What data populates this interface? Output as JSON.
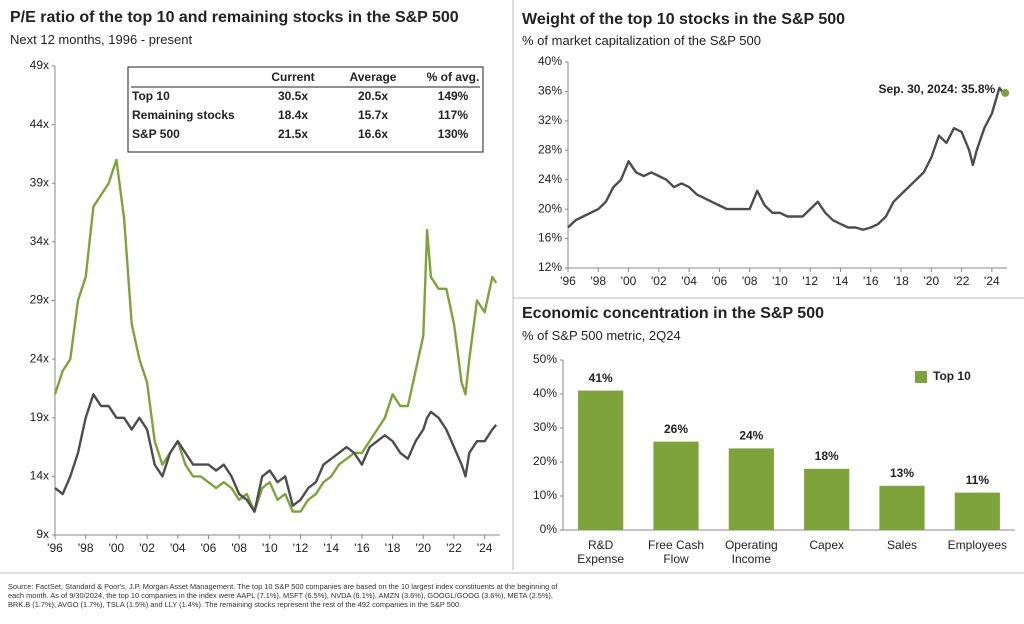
{
  "chart_data": [
    {
      "type": "line",
      "title": "P/E ratio of the top 10 and remaining stocks in the S&P 500",
      "subtitle": "Next 12 months, 1996 - present",
      "x": [
        1996,
        1996.5,
        1997,
        1997.5,
        1998,
        1998.5,
        1999,
        1999.5,
        2000,
        2000.5,
        2001,
        2001.5,
        2002,
        2002.5,
        2003,
        2003.5,
        2004,
        2004.5,
        2005,
        2005.5,
        2006,
        2006.5,
        2007,
        2007.5,
        2008,
        2008.5,
        2009,
        2009.5,
        2010,
        2010.5,
        2011,
        2011.5,
        2012,
        2012.5,
        2013,
        2013.5,
        2014,
        2014.5,
        2015,
        2015.5,
        2016,
        2016.5,
        2017,
        2017.5,
        2018,
        2018.5,
        2019,
        2019.5,
        2020,
        2020.25,
        2020.5,
        2021,
        2021.5,
        2022,
        2022.5,
        2022.75,
        2023,
        2023.5,
        2024,
        2024.5,
        2024.75
      ],
      "series": [
        {
          "color": "#7fa33b",
          "values": [
            21,
            23,
            24,
            29,
            31,
            37,
            38,
            39,
            41,
            36,
            27,
            24,
            22,
            17,
            15,
            16,
            17,
            15,
            14,
            14,
            13.5,
            13,
            13.5,
            13,
            12,
            12.5,
            11,
            13,
            13.5,
            12,
            12.5,
            11,
            11,
            12,
            12.5,
            13.5,
            14,
            15,
            15.5,
            16,
            16,
            17,
            18,
            19,
            21,
            20,
            20,
            23,
            26,
            35,
            31,
            30,
            30,
            27,
            22,
            21,
            24,
            29,
            28,
            31,
            30.5
          ]
        },
        {
          "color": "#4d4d4f",
          "values": [
            13,
            12.5,
            14,
            16,
            19,
            21,
            20,
            20,
            19,
            19,
            18,
            19,
            18,
            15,
            14,
            16,
            17,
            16,
            15,
            15,
            15,
            14.5,
            15,
            14,
            12.5,
            12,
            11,
            14,
            14.5,
            13.5,
            14,
            11.5,
            12,
            13,
            13.5,
            15,
            15.5,
            16,
            16.5,
            16,
            15,
            16.5,
            17,
            17.5,
            17,
            16,
            15.5,
            17,
            18,
            19,
            19.5,
            19,
            18,
            16.5,
            15,
            14,
            16,
            17,
            17,
            18,
            18.4
          ]
        }
      ],
      "xlim": [
        1996,
        2025
      ],
      "xticks": [
        {
          "value": 1996,
          "label": "'96"
        },
        {
          "value": 1998,
          "label": "'98"
        },
        {
          "value": 2000,
          "label": "'00"
        },
        {
          "value": 2002,
          "label": "'02"
        },
        {
          "value": 2004,
          "label": "'04"
        },
        {
          "value": 2006,
          "label": "'06"
        },
        {
          "value": 2008,
          "label": "'08"
        },
        {
          "value": 2010,
          "label": "'10"
        },
        {
          "value": 2012,
          "label": "'12"
        },
        {
          "value": 2014,
          "label": "'14"
        },
        {
          "value": 2016,
          "label": "'16"
        },
        {
          "value": 2018,
          "label": "'18"
        },
        {
          "value": 2020,
          "label": "'20"
        },
        {
          "value": 2022,
          "label": "'22"
        },
        {
          "value": 2024,
          "label": "'24"
        }
      ],
      "ylim": [
        9,
        49
      ],
      "yticks": [
        {
          "value": 9,
          "label": "9x"
        },
        {
          "value": 14,
          "label": "14x"
        },
        {
          "value": 19,
          "label": "19x"
        },
        {
          "value": 24,
          "label": "24x"
        },
        {
          "value": 29,
          "label": "29x"
        },
        {
          "value": 34,
          "label": "34x"
        },
        {
          "value": 39,
          "label": "39x"
        },
        {
          "value": 44,
          "label": "44x"
        },
        {
          "value": 49,
          "label": "49x"
        }
      ],
      "grid": false,
      "table": {
        "columns": [
          "Current",
          "Average",
          "% of avg."
        ],
        "rows": [
          [
            "Top 10",
            "30.5x",
            "20.5x",
            "149%"
          ],
          [
            "Remaining stocks",
            "18.4x",
            "15.7x",
            "117%"
          ],
          [
            "S&P 500",
            "21.5x",
            "16.6x",
            "130%"
          ]
        ]
      }
    },
    {
      "type": "line",
      "title": "Weight of the top 10 stocks in the S&P 500",
      "subtitle": "% of market capitalization of the S&P 500",
      "annotation": "Sep. 30, 2024: 35.8%",
      "x": [
        1996,
        1996.5,
        1997,
        1997.5,
        1998,
        1998.5,
        1999,
        1999.5,
        2000,
        2000.5,
        2001,
        2001.5,
        2002,
        2002.5,
        2003,
        2003.5,
        2004,
        2004.5,
        2005,
        2005.5,
        2006,
        2006.5,
        2007,
        2007.5,
        2008,
        2008.5,
        2009,
        2009.5,
        2010,
        2010.5,
        2011,
        2011.5,
        2012,
        2012.5,
        2013,
        2013.5,
        2014,
        2014.5,
        2015,
        2015.5,
        2016,
        2016.5,
        2017,
        2017.5,
        2018,
        2018.5,
        2019,
        2019.5,
        2020,
        2020.5,
        2021,
        2021.5,
        2022,
        2022.5,
        2022.75,
        2023,
        2023.5,
        2024,
        2024.5,
        2024.75
      ],
      "series": [
        {
          "color": "#4d4d4f",
          "values": [
            17.5,
            18.5,
            19,
            19.5,
            20,
            21,
            23,
            24,
            26.5,
            25,
            24.5,
            25,
            24.5,
            24,
            23,
            23.5,
            23,
            22,
            21.5,
            21,
            20.5,
            20,
            20,
            20,
            20,
            22.5,
            20.5,
            19.5,
            19.5,
            19,
            19,
            19,
            20,
            21,
            19.5,
            18.5,
            18,
            17.5,
            17.5,
            17.2,
            17.5,
            18,
            19,
            21,
            22,
            23,
            24,
            25,
            27,
            30,
            29,
            31,
            30.5,
            28,
            26,
            28,
            31,
            33,
            36.5,
            35.8
          ]
        }
      ],
      "annotation_color": "#7fa33b",
      "xlim": [
        1996,
        2025
      ],
      "xticks": [
        {
          "value": 1996,
          "label": "'96"
        },
        {
          "value": 1998,
          "label": "'98"
        },
        {
          "value": 2000,
          "label": "'00"
        },
        {
          "value": 2002,
          "label": "'02"
        },
        {
          "value": 2004,
          "label": "'04"
        },
        {
          "value": 2006,
          "label": "'06"
        },
        {
          "value": 2008,
          "label": "'08"
        },
        {
          "value": 2010,
          "label": "'10"
        },
        {
          "value": 2012,
          "label": "'12"
        },
        {
          "value": 2014,
          "label": "'14"
        },
        {
          "value": 2016,
          "label": "'16"
        },
        {
          "value": 2018,
          "label": "'18"
        },
        {
          "value": 2020,
          "label": "'20"
        },
        {
          "value": 2022,
          "label": "'22"
        },
        {
          "value": 2024,
          "label": "'24"
        }
      ],
      "ylim": [
        12,
        40
      ],
      "yticks": [
        {
          "value": 12,
          "label": "12%"
        },
        {
          "value": 16,
          "label": "16%"
        },
        {
          "value": 20,
          "label": "20%"
        },
        {
          "value": 24,
          "label": "24%"
        },
        {
          "value": 28,
          "label": "28%"
        },
        {
          "value": 32,
          "label": "32%"
        },
        {
          "value": 36,
          "label": "36%"
        },
        {
          "value": 40,
          "label": "40%"
        }
      ],
      "grid": false
    },
    {
      "type": "bar",
      "title": "Economic concentration in the S&P 500",
      "subtitle": "% of S&P 500 metric, 2Q24",
      "categories": [
        "R&D\nExpense",
        "Free Cash\nFlow",
        "Operating\nIncome",
        "Capex",
        "Sales",
        "Employees"
      ],
      "series": [
        {
          "name": "Top 10",
          "color": "#7fa33b",
          "values": [
            41,
            26,
            24,
            18,
            13,
            11
          ],
          "value_labels": [
            "41%",
            "26%",
            "24%",
            "18%",
            "13%",
            "11%"
          ]
        }
      ],
      "ylim": [
        0,
        50
      ],
      "yticks": [
        {
          "value": 0,
          "label": "0%"
        },
        {
          "value": 10,
          "label": "10%"
        },
        {
          "value": 20,
          "label": "20%"
        },
        {
          "value": 30,
          "label": "30%"
        },
        {
          "value": 40,
          "label": "40%"
        },
        {
          "value": 50,
          "label": "50%"
        }
      ],
      "grid": false,
      "legend": "upper right"
    }
  ],
  "footnote": "Source: FactSet, Standard & Poor's, J.P. Morgan Asset Management. The top 10 S&P 500 companies are based on the 10 largest index constituents at the beginning of each month. As of 9/30/2024, the top 10 companies in the index were AAPL (7.1%), MSFT (6.5%), NVDA (6.1%), AMZN (3.6%), GOOGL/GOOG (3.6%), META (2.5%), BRK.B (1.7%), AVGO (1.7%), TSLA (1.5%) and LLY (1.4%). The remaining stocks represent the rest of the 492 companies in the S&P 500."
}
